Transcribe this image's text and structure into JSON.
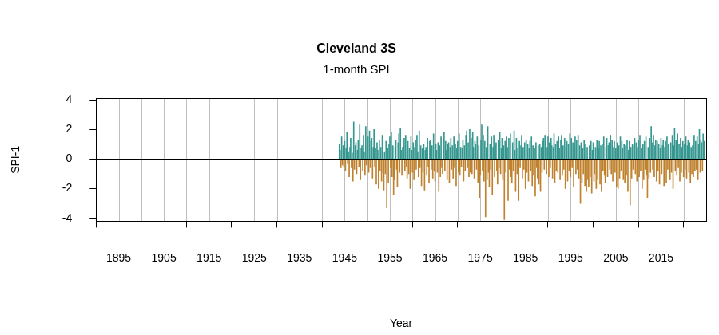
{
  "chart_data": {
    "type": "bar",
    "title": "Cleveland 3S",
    "subtitle": "1-month SPI",
    "xlabel": "Year",
    "ylabel": "SPI-1",
    "xlim": [
      1890,
      2025
    ],
    "xticks": [
      1895,
      1905,
      1915,
      1925,
      1935,
      1945,
      1955,
      1965,
      1975,
      1985,
      1995,
      2005,
      2015
    ],
    "ylim": [
      -4.2,
      4.1
    ],
    "yticks": [
      -4,
      -2,
      0,
      2,
      4
    ],
    "grid": true,
    "series": [
      {
        "color": "#35978f",
        "x": [
          1943.83,
          1944,
          1944.33,
          1944.67,
          1945,
          1945.33,
          1945.5,
          1945.83,
          1946.17,
          1946.33,
          1946.67,
          1947,
          1947.33,
          1947.5,
          1947.83,
          1948,
          1948.33,
          1948.67,
          1948.83,
          1949.17,
          1949.33,
          1949.67,
          1950,
          1950.17,
          1950.5,
          1950.83,
          1951,
          1951.33,
          1951.5,
          1951.83,
          1952.17,
          1952.33,
          1952.67,
          1953,
          1953.33,
          1953.83,
          1954.17,
          1954.5,
          1954.83,
          1955,
          1955.33,
          1955.67,
          1956.17,
          1956.33,
          1956.83,
          1957,
          1957.33,
          1957.5,
          1957.83,
          1958,
          1958.17,
          1958.5,
          1959,
          1959.33,
          1959.67,
          1959.83,
          1960.17,
          1960.5,
          1960.67,
          1961,
          1961.17,
          1961.5,
          1961.83,
          1962.17,
          1962.5,
          1962.83,
          1963,
          1963.33,
          1963.83,
          1964,
          1964.33,
          1964.67,
          1965.17,
          1965.33,
          1965.67,
          1966,
          1966.33,
          1966.83,
          1967,
          1967.33,
          1967.5,
          1967.83,
          1968,
          1968.33,
          1968.5,
          1968.83,
          1969.17,
          1969.5,
          1969.83,
          1970,
          1970.33,
          1970.67,
          1971,
          1971.17,
          1971.5,
          1971.83,
          1972,
          1972.33,
          1972.67,
          1973,
          1973.33,
          1973.5,
          1973.83,
          1974,
          1974.33,
          1974.67,
          1975.17,
          1975.33,
          1975.67,
          1976,
          1976.33,
          1976.67,
          1977.17,
          1977.5,
          1977.83,
          1978,
          1978.33,
          1978.5,
          1979,
          1979.33,
          1979.67,
          1979.83,
          1980.17,
          1980.5,
          1980.83,
          1981,
          1981.33,
          1981.67,
          1982.17,
          1982.5,
          1982.67,
          1983,
          1983.33,
          1983.67,
          1984,
          1984.17,
          1984.5,
          1984.83,
          1985.17,
          1985.5,
          1985.83,
          1986,
          1986.33,
          1986.67,
          1987,
          1987.33,
          1987.83,
          1988.17,
          1988.5,
          1988.83,
          1989,
          1989.33,
          1989.5,
          1989.83,
          1990,
          1990.33,
          1990.67,
          1990.83,
          1991.17,
          1991.33,
          1991.67,
          1992,
          1992.33,
          1992.5,
          1992.83,
          1993,
          1993.33,
          1993.67,
          1994,
          1994.17,
          1994.5,
          1994.83,
          1995.17,
          1995.5,
          1995.83,
          1996,
          1996.33,
          1996.67,
          1997,
          1997.33,
          1997.67,
          1998,
          1998.33,
          1998.67,
          1999.17,
          1999.5,
          1999.83,
          2000,
          2000.5,
          2000.83,
          2001.17,
          2001.33,
          2001.67,
          2002,
          2002.33,
          2002.83,
          2003,
          2003.33,
          2003.5,
          2003.83,
          2004.17,
          2004.5,
          2004.67,
          2005,
          2005.33,
          2005.67,
          2006,
          2006.33,
          2006.5,
          2006.83,
          2007.17,
          2007.5,
          2007.83,
          2008,
          2008.33,
          2008.67,
          2009,
          2009.17,
          2009.5,
          2009.83,
          2010,
          2010.33,
          2010.67,
          2011,
          2011.33,
          2011.67,
          2012.17,
          2012.5,
          2012.83,
          2013,
          2013.33,
          2013.67,
          2013.83,
          2014.17,
          2014.5,
          2014.83,
          2015,
          2015.33,
          2015.5,
          2015.83,
          2016,
          2016.33,
          2016.67,
          2017.17,
          2017.5,
          2017.83,
          2018,
          2018.33,
          2018.67,
          2019,
          2019.33,
          2019.67,
          2019.83,
          2020.17,
          2020.5,
          2020.83,
          2021,
          2021.33,
          2021.67,
          2022,
          2022.33,
          2022.67,
          2023,
          2023.33,
          2023.5,
          2023.83,
          2024,
          2024.33,
          2024.5
        ],
        "values": [
          1.0,
          0.6,
          1.5,
          0.9,
          1.2,
          0.7,
          1.8,
          0.5,
          0.8,
          1.4,
          0.4,
          2.5,
          0.9,
          1.1,
          0.6,
          1.3,
          2.3,
          0.7,
          0.9,
          1.6,
          0.5,
          2.2,
          0.9,
          1.5,
          1.9,
          1.2,
          1.4,
          0.8,
          2.0,
          0.7,
          1.1,
          0.6,
          1.3,
          0.8,
          1.6,
          0.5,
          1.2,
          0.7,
          1.0,
          1.5,
          1.8,
          0.9,
          0.8,
          1.3,
          1.1,
          1.7,
          2.1,
          0.6,
          0.8,
          0.9,
          1.4,
          1.6,
          1.2,
          0.7,
          1.5,
          0.6,
          1.1,
          0.8,
          1.3,
          1.6,
          0.5,
          1.9,
          0.9,
          0.7,
          1.0,
          0.6,
          0.8,
          1.4,
          1.2,
          1.3,
          0.9,
          1.7,
          1.0,
          0.6,
          1.1,
          0.9,
          1.5,
          0.7,
          1.8,
          1.2,
          0.6,
          1.0,
          1.1,
          0.8,
          1.4,
          0.9,
          1.5,
          1.0,
          0.7,
          1.2,
          1.7,
          0.8,
          0.7,
          1.3,
          0.9,
          1.6,
          1.9,
          1.1,
          2.0,
          1.4,
          1.8,
          0.8,
          1.2,
          1.0,
          1.5,
          0.9,
          1.3,
          2.3,
          1.6,
          1.2,
          0.8,
          2.2,
          1.0,
          1.5,
          0.8,
          1.6,
          0.9,
          1.1,
          1.3,
          1.8,
          0.7,
          1.4,
          0.9,
          1.2,
          1.5,
          0.8,
          1.4,
          1.7,
          1.1,
          1.9,
          0.6,
          1.4,
          0.7,
          1.2,
          0.9,
          1.6,
          0.8,
          1.1,
          1.3,
          1.0,
          0.7,
          1.2,
          1.5,
          0.9,
          0.7,
          1.1,
          0.9,
          1.0,
          0.8,
          1.2,
          1.4,
          1.6,
          1.3,
          0.8,
          1.5,
          1.1,
          1.4,
          0.9,
          0.8,
          1.7,
          1.0,
          1.2,
          1.5,
          0.7,
          1.3,
          1.6,
          0.9,
          1.4,
          0.8,
          1.2,
          1.0,
          1.7,
          1.4,
          1.1,
          0.9,
          1.5,
          1.3,
          1.6,
          0.9,
          1.1,
          0.7,
          1.3,
          1.0,
          0.8,
          0.9,
          1.2,
          0.6,
          1.1,
          0.8,
          1.3,
          0.7,
          1.2,
          0.9,
          1.0,
          1.5,
          0.8,
          1.4,
          0.9,
          1.1,
          1.6,
          1.3,
          0.8,
          1.2,
          0.7,
          1.1,
          0.9,
          1.5,
          1.2,
          0.7,
          1.0,
          0.9,
          1.3,
          0.6,
          1.2,
          0.8,
          1.0,
          0.9,
          1.4,
          1.1,
          0.8,
          1.3,
          1.6,
          0.7,
          1.0,
          1.2,
          1.5,
          0.8,
          1.4,
          2.2,
          1.1,
          1.6,
          0.9,
          1.3,
          1.2,
          1.0,
          0.7,
          1.4,
          0.9,
          1.3,
          0.8,
          1.2,
          1.5,
          1.0,
          1.1,
          1.6,
          0.9,
          2.1,
          1.3,
          1.7,
          1.0,
          1.4,
          0.8,
          1.2,
          1.0,
          1.5,
          0.9,
          1.3,
          1.1,
          0.8,
          0.9,
          1.6,
          1.2,
          1.5,
          1.0,
          2.0,
          1.3,
          1.1,
          1.7,
          1.2
        ]
      },
      {
        "color": "#bf812d",
        "x": [
          1944.17,
          1944.5,
          1944.83,
          1945.17,
          1945.67,
          1946,
          1946.5,
          1946.83,
          1947.17,
          1947.67,
          1948.17,
          1948.5,
          1949,
          1949.5,
          1949.83,
          1950.33,
          1950.67,
          1951.17,
          1951.67,
          1952,
          1952.5,
          1952.83,
          1953.17,
          1953.5,
          1953.67,
          1954,
          1954.33,
          1954.67,
          1955.17,
          1955.5,
          1955.83,
          1956,
          1956.5,
          1956.67,
          1957.17,
          1957.67,
          1958.33,
          1958.67,
          1958.83,
          1959.17,
          1959.5,
          1960,
          1960.33,
          1960.83,
          1961.33,
          1961.67,
          1962,
          1962.33,
          1962.67,
          1963.17,
          1963.5,
          1963.67,
          1964.17,
          1964.5,
          1964.83,
          1965,
          1965.5,
          1965.83,
          1966.17,
          1966.5,
          1966.67,
          1967.17,
          1967.67,
          1968.17,
          1968.67,
          1969,
          1969.33,
          1969.67,
          1970.17,
          1970.5,
          1970.83,
          1971.33,
          1971.67,
          1972.17,
          1972.5,
          1972.83,
          1973.17,
          1973.67,
          1974.17,
          1974.5,
          1974.83,
          1975,
          1975.5,
          1975.83,
          1976.17,
          1976.5,
          1976.83,
          1977,
          1977.33,
          1977.67,
          1978.17,
          1978.67,
          1978.83,
          1979.17,
          1979.5,
          1980,
          1980.33,
          1980.67,
          1981.17,
          1981.5,
          1981.83,
          1982,
          1982.33,
          1982.83,
          1983.17,
          1983.5,
          1983.83,
          1984.33,
          1984.67,
          1985,
          1985.33,
          1985.67,
          1986.17,
          1986.5,
          1986.83,
          1987.17,
          1987.5,
          1987.67,
          1988,
          1988.33,
          1988.67,
          1989.17,
          1989.67,
          1990.17,
          1990.5,
          1991,
          1991.5,
          1991.83,
          1992.17,
          1992.67,
          1993.17,
          1993.5,
          1993.83,
          1994.33,
          1994.67,
          1995,
          1995.33,
          1995.67,
          1996.17,
          1996.5,
          1996.83,
          1997.17,
          1997.5,
          1997.83,
          1998.17,
          1998.5,
          1998.83,
          1999,
          1999.33,
          1999.67,
          2000.17,
          2000.33,
          2000.67,
          2001,
          2001.5,
          2001.83,
          2002.17,
          2002.5,
          2002.67,
          2003.17,
          2003.67,
          2004,
          2004.33,
          2004.83,
          2005.17,
          2005.5,
          2005.83,
          2006.17,
          2006.67,
          2007,
          2007.33,
          2007.67,
          2008.17,
          2008.5,
          2008.83,
          2009.33,
          2009.67,
          2010.17,
          2010.5,
          2010.83,
          2011.17,
          2011.5,
          2011.83,
          2012,
          2012.33,
          2012.67,
          2013.17,
          2013.5,
          2014,
          2014.33,
          2014.67,
          2015.17,
          2015.67,
          2016.17,
          2016.5,
          2016.83,
          2017,
          2017.33,
          2017.67,
          2018.17,
          2018.5,
          2018.83,
          2019.17,
          2019.5,
          2020,
          2020.33,
          2020.67,
          2021.17,
          2021.5,
          2021.83,
          2022.17,
          2022.5,
          2022.83,
          2023.17,
          2023.67,
          2024.17
        ],
        "values": [
          -0.6,
          -0.4,
          -0.5,
          -0.8,
          -0.3,
          -1.2,
          -0.6,
          -1.5,
          -0.7,
          -1.0,
          -0.5,
          -1.4,
          -0.8,
          -1.1,
          -0.4,
          -0.9,
          -0.6,
          -1.3,
          -0.5,
          -1.7,
          -2.0,
          -0.8,
          -1.5,
          -0.9,
          -2.1,
          -1.0,
          -3.3,
          -1.6,
          -0.6,
          -1.2,
          -2.4,
          -1.4,
          -0.7,
          -1.9,
          -0.9,
          -1.1,
          -0.8,
          -0.5,
          -1.3,
          -1.0,
          -2.0,
          -0.9,
          -1.4,
          -0.7,
          -1.2,
          -0.6,
          -1.8,
          -0.9,
          -2.1,
          -1.1,
          -0.5,
          -1.6,
          -0.7,
          -1.3,
          -0.8,
          -1.5,
          -0.9,
          -2.2,
          -1.2,
          -0.6,
          -1.0,
          -0.8,
          -1.4,
          -1.6,
          -0.7,
          -1.3,
          -0.6,
          -1.8,
          -0.9,
          -1.1,
          -0.5,
          -1.5,
          -0.8,
          -0.6,
          -1.2,
          -0.9,
          -1.0,
          -1.3,
          -0.7,
          -1.6,
          -2.6,
          -1.1,
          -0.8,
          -1.5,
          -3.9,
          -1.4,
          -0.9,
          -1.9,
          -0.7,
          -2.4,
          -1.2,
          -0.8,
          -1.7,
          -0.6,
          -1.0,
          -1.4,
          -4.1,
          -0.9,
          -2.8,
          -0.7,
          -1.2,
          -1.6,
          -0.8,
          -2.2,
          -1.0,
          -2.8,
          -0.6,
          -1.3,
          -0.7,
          -2.0,
          -0.9,
          -1.5,
          -0.8,
          -1.8,
          -1.1,
          -2.5,
          -0.6,
          -1.3,
          -1.7,
          -2.2,
          -0.9,
          -0.7,
          -1.0,
          -1.2,
          -0.6,
          -1.3,
          -1.6,
          -0.8,
          -0.9,
          -1.4,
          -1.1,
          -0.7,
          -2.0,
          -1.5,
          -0.8,
          -1.2,
          -0.6,
          -1.9,
          -1.0,
          -0.7,
          -1.3,
          -3.0,
          -1.6,
          -1.0,
          -1.8,
          -2.2,
          -1.4,
          -1.9,
          -1.2,
          -2.3,
          -1.5,
          -1.0,
          -2.0,
          -1.4,
          -1.7,
          -2.2,
          -0.8,
          -1.1,
          -1.6,
          -1.2,
          -0.7,
          -1.0,
          -1.5,
          -0.9,
          -1.9,
          -2.0,
          -1.3,
          -0.8,
          -1.4,
          -1.6,
          -1.1,
          -2.2,
          -3.1,
          -1.3,
          -0.7,
          -1.0,
          -1.5,
          -1.2,
          -0.8,
          -2.0,
          -1.4,
          -0.7,
          -1.1,
          -2.6,
          -1.3,
          -0.9,
          -0.7,
          -1.2,
          -1.5,
          -0.8,
          -1.7,
          -1.0,
          -1.8,
          -1.6,
          -0.7,
          -1.2,
          -1.4,
          -0.9,
          -2.0,
          -0.8,
          -1.1,
          -0.6,
          -1.5,
          -0.9,
          -1.2,
          -0.7,
          -1.3,
          -0.9,
          -1.6,
          -1.0,
          -1.2,
          -0.8,
          -0.7,
          -1.4,
          -0.9,
          -0.8
        ]
      }
    ]
  }
}
